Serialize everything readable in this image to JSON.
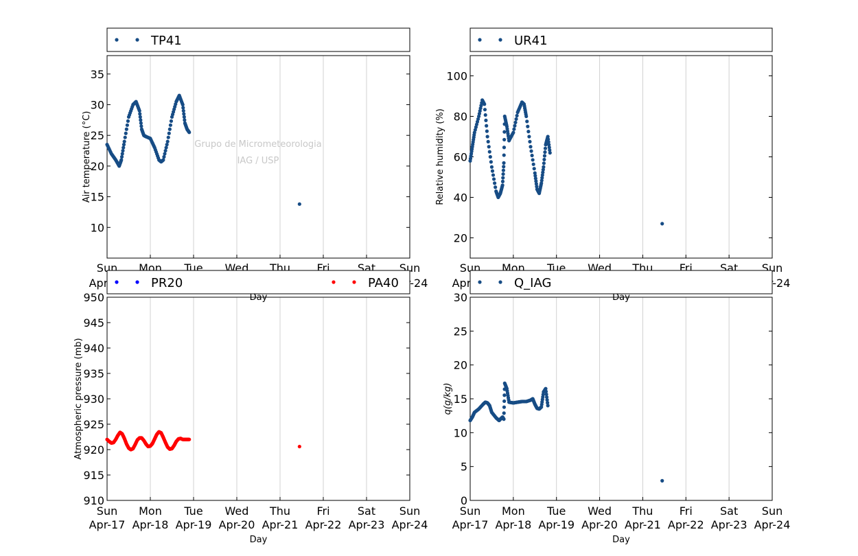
{
  "watermark": {
    "line1": "Grupo de Micrometeorologia",
    "line2": "IAG / USP"
  },
  "chart_data": [
    {
      "type": "scatter",
      "id": "temp",
      "legend": [
        "TP41"
      ],
      "ylabel": "Air temperature (°C)",
      "xlabel": "Day",
      "ylim": [
        5,
        38
      ],
      "yticks": [
        10,
        15,
        20,
        25,
        30,
        35
      ],
      "xlim": [
        0,
        7
      ],
      "grid_x": true,
      "xticks_top": [
        "Sun",
        "Mon",
        "Tue",
        "Wed",
        "Thu",
        "Fri",
        "Sat",
        "Sun"
      ],
      "xticks_bottom": [
        "Apr-17",
        "Apr-18",
        "Apr-19",
        "Apr-20",
        "Apr-21",
        "Apr-22",
        "Apr-23",
        "Apr-24"
      ],
      "series": [
        {
          "name": "TP41",
          "color": "#174c85",
          "x": [
            0.0,
            0.1,
            0.2,
            0.28,
            0.33,
            0.4,
            0.5,
            0.6,
            0.67,
            0.75,
            0.8,
            0.85,
            0.9,
            1.0,
            1.1,
            1.2,
            1.25,
            1.3,
            1.4,
            1.5,
            1.6,
            1.67,
            1.75,
            1.8,
            1.85,
            1.9,
            4.45
          ],
          "y": [
            23.5,
            22.0,
            21.0,
            20.0,
            21.0,
            24.0,
            28.0,
            30.0,
            30.5,
            29.0,
            26.0,
            25.0,
            24.8,
            24.5,
            23.0,
            21.0,
            20.7,
            21.0,
            24.0,
            28.0,
            30.5,
            31.5,
            30.0,
            27.0,
            26.0,
            25.5,
            13.8
          ]
        }
      ]
    },
    {
      "type": "scatter",
      "id": "rh",
      "legend": [
        "UR41"
      ],
      "ylabel": "Relative humidity (%)",
      "xlabel": "Day",
      "ylim": [
        10,
        110
      ],
      "yticks": [
        20,
        40,
        60,
        80,
        100
      ],
      "xlim": [
        0,
        7
      ],
      "grid_x": true,
      "xticks_top": [
        "Sun",
        "Mon",
        "Tue",
        "Wed",
        "Thu",
        "Fri",
        "Sat",
        "Sun"
      ],
      "xticks_bottom": [
        "Apr-17",
        "Apr-18",
        "Apr-19",
        "Apr-20",
        "Apr-21",
        "Apr-22",
        "Apr-23",
        "Apr-24"
      ],
      "series": [
        {
          "name": "UR41",
          "color": "#174c85",
          "x": [
            0.0,
            0.05,
            0.1,
            0.2,
            0.28,
            0.33,
            0.4,
            0.5,
            0.6,
            0.65,
            0.7,
            0.75,
            0.78,
            0.8,
            0.85,
            0.9,
            1.0,
            1.1,
            1.2,
            1.25,
            1.3,
            1.4,
            1.5,
            1.55,
            1.6,
            1.65,
            1.7,
            1.75,
            1.8,
            1.85,
            4.45
          ],
          "y": [
            58.0,
            65.0,
            72.0,
            80.0,
            88.0,
            86.0,
            70.0,
            55.0,
            43.0,
            40.0,
            42.0,
            46.0,
            57.0,
            80.0,
            75.0,
            68.0,
            72.0,
            82.0,
            87.0,
            86.0,
            80.0,
            65.0,
            52.0,
            44.0,
            42.0,
            47.0,
            55.0,
            66.0,
            70.0,
            62.0,
            27.0
          ]
        }
      ]
    },
    {
      "type": "scatter",
      "id": "pressure",
      "legend": [
        "PR20",
        "PA40"
      ],
      "ylabel": "Atmospheric pressure (mb)",
      "xlabel": "Day",
      "ylim": [
        910,
        950
      ],
      "yticks": [
        910,
        915,
        920,
        925,
        930,
        935,
        940,
        945,
        950
      ],
      "xlim": [
        0,
        7
      ],
      "grid_x": true,
      "xticks_top": [
        "Sun",
        "Mon",
        "Tue",
        "Wed",
        "Thu",
        "Fri",
        "Sat",
        "Sun"
      ],
      "xticks_bottom": [
        "Apr-17",
        "Apr-18",
        "Apr-19",
        "Apr-20",
        "Apr-21",
        "Apr-22",
        "Apr-23",
        "Apr-24"
      ],
      "series": [
        {
          "name": "PR20",
          "color": "#0000ff",
          "x": [],
          "y": []
        },
        {
          "name": "PA40",
          "color": "#ff0000",
          "x": [
            0.0,
            0.05,
            0.1,
            0.15,
            0.2,
            0.25,
            0.3,
            0.35,
            0.4,
            0.45,
            0.5,
            0.55,
            0.6,
            0.65,
            0.7,
            0.75,
            0.8,
            0.85,
            0.9,
            0.95,
            1.0,
            1.05,
            1.1,
            1.15,
            1.2,
            1.25,
            1.3,
            1.35,
            1.4,
            1.45,
            1.5,
            1.55,
            1.6,
            1.65,
            1.7,
            1.75,
            1.8,
            1.85,
            1.9,
            4.45
          ],
          "y": [
            922.0,
            921.6,
            921.3,
            921.4,
            922.0,
            922.8,
            923.4,
            923.1,
            922.2,
            921.1,
            920.3,
            920.0,
            920.2,
            921.0,
            921.9,
            922.3,
            922.3,
            921.8,
            921.1,
            920.6,
            920.7,
            921.2,
            922.1,
            923.0,
            923.5,
            923.3,
            922.4,
            921.4,
            920.5,
            920.1,
            920.2,
            920.8,
            921.6,
            922.1,
            922.2,
            922.0,
            922.0,
            922.0,
            922.0,
            920.6
          ]
        }
      ]
    },
    {
      "type": "scatter",
      "id": "q",
      "legend": [
        "Q_IAG"
      ],
      "ylabel": "q(g/kg)",
      "xlabel": "Day",
      "ylim": [
        0,
        30
      ],
      "yticks": [
        0,
        5,
        10,
        15,
        20,
        25,
        30
      ],
      "xlim": [
        0,
        7
      ],
      "grid_x": true,
      "xticks_top": [
        "Sun",
        "Mon",
        "Tue",
        "Wed",
        "Thu",
        "Fri",
        "Sat",
        "Sun"
      ],
      "xticks_bottom": [
        "Apr-17",
        "Apr-18",
        "Apr-19",
        "Apr-20",
        "Apr-21",
        "Apr-22",
        "Apr-23",
        "Apr-24"
      ],
      "series": [
        {
          "name": "Q_IAG",
          "color": "#174c85",
          "x": [
            0.0,
            0.05,
            0.1,
            0.2,
            0.3,
            0.35,
            0.4,
            0.45,
            0.5,
            0.6,
            0.67,
            0.7,
            0.75,
            0.78,
            0.8,
            0.85,
            0.9,
            1.0,
            1.1,
            1.2,
            1.3,
            1.4,
            1.45,
            1.5,
            1.55,
            1.6,
            1.65,
            1.7,
            1.75,
            1.8,
            4.45
          ],
          "y": [
            11.8,
            12.3,
            13.0,
            13.5,
            14.2,
            14.5,
            14.4,
            14.0,
            13.0,
            12.2,
            11.8,
            12.0,
            12.3,
            12.0,
            17.3,
            16.5,
            14.5,
            14.4,
            14.5,
            14.6,
            14.6,
            14.8,
            15.0,
            14.2,
            13.6,
            13.5,
            13.8,
            16.0,
            16.5,
            14.0,
            2.9
          ]
        }
      ]
    }
  ]
}
